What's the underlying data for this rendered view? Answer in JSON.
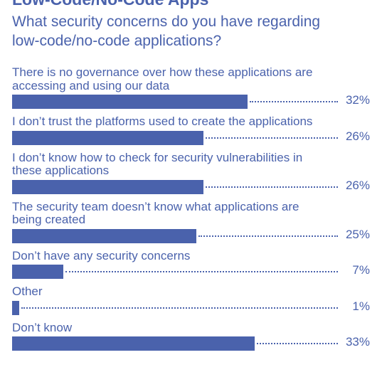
{
  "chart_data": {
    "type": "bar",
    "title": "Low-Code/No-Code Apps",
    "subtitle": "What security concerns do you have regarding\nlow-code/no-code applications?",
    "categories": [
      "There is no governance over how these applications are\naccessing and using our data",
      "I don’t trust the platforms used to create the applications",
      "I don’t know how to check for security vulnerabilities in\nthese applications",
      "The security team doesn’t know what applications are\nbeing created",
      "Don’t have any security concerns",
      "Other",
      "Don’t know"
    ],
    "values": [
      32,
      26,
      26,
      25,
      7,
      1,
      33
    ],
    "value_labels": [
      "32%",
      "26%",
      "26%",
      "25%",
      "7%",
      "1%",
      "33%"
    ],
    "color": "#4a62ac"
  }
}
